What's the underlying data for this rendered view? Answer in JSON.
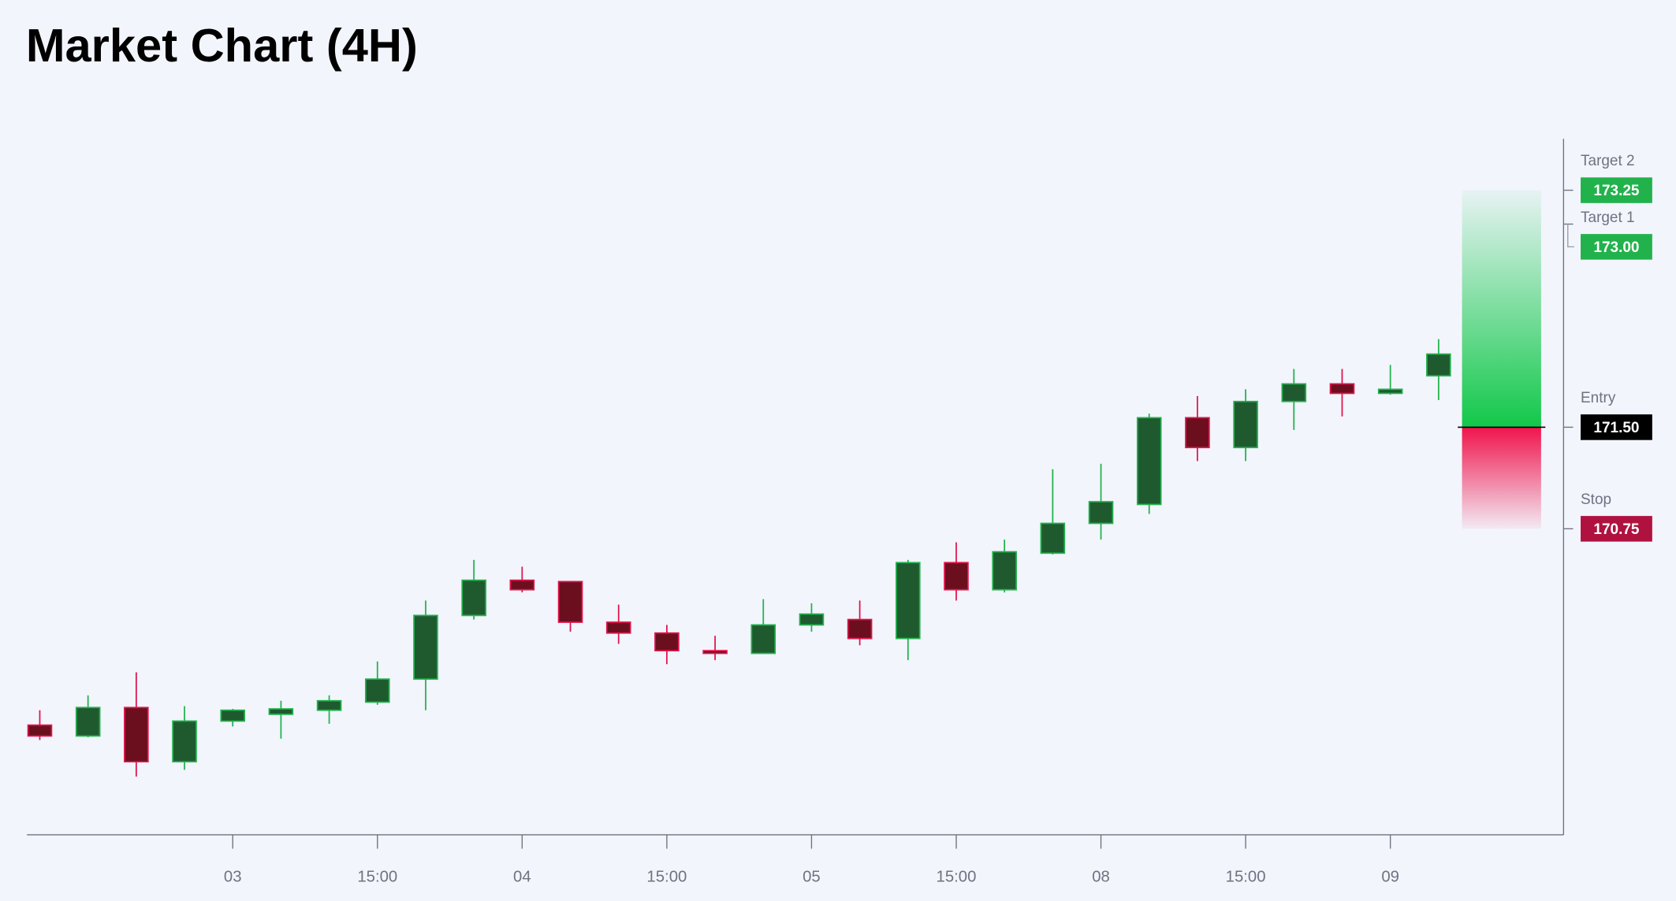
{
  "chart_data": {
    "type": "candlestick",
    "title": "Market Chart (4H)",
    "categories": [
      null,
      null,
      null,
      null,
      "03",
      null,
      null,
      "15:00",
      null,
      null,
      "04",
      null,
      null,
      "15:00",
      null,
      null,
      "05",
      null,
      null,
      "15:00",
      null,
      null,
      "08",
      null,
      null,
      "15:00",
      null,
      null,
      "09",
      null
    ],
    "open": [
      169.3,
      169.22,
      169.43,
      169.03,
      169.33,
      169.38,
      169.41,
      169.47,
      169.64,
      170.11,
      170.37,
      170.36,
      170.06,
      169.98,
      169.85,
      169.83,
      170.04,
      170.08,
      169.94,
      170.5,
      170.3,
      170.57,
      170.79,
      170.93,
      171.57,
      171.35,
      171.69,
      171.82,
      171.75,
      171.88
    ],
    "high": [
      169.41,
      169.52,
      169.69,
      169.44,
      169.42,
      169.48,
      169.52,
      169.77,
      170.22,
      170.52,
      170.47,
      170.36,
      170.19,
      170.04,
      169.96,
      170.23,
      170.2,
      170.22,
      170.52,
      170.65,
      170.67,
      171.19,
      171.23,
      171.6,
      171.73,
      171.78,
      171.93,
      171.93,
      171.96,
      172.15
    ],
    "low": [
      169.19,
      169.21,
      168.92,
      168.97,
      169.29,
      169.2,
      169.31,
      169.45,
      169.41,
      170.08,
      170.28,
      169.99,
      169.9,
      169.75,
      169.78,
      169.83,
      169.99,
      169.89,
      169.78,
      170.22,
      170.28,
      170.56,
      170.67,
      170.86,
      171.25,
      171.25,
      171.48,
      171.58,
      171.74,
      171.7
    ],
    "close": [
      169.22,
      169.43,
      169.03,
      169.33,
      169.41,
      169.42,
      169.48,
      169.64,
      170.11,
      170.37,
      170.3,
      170.06,
      169.98,
      169.85,
      169.83,
      170.04,
      170.12,
      169.94,
      170.5,
      170.3,
      170.58,
      170.79,
      170.95,
      171.57,
      171.35,
      171.69,
      171.82,
      171.75,
      171.78,
      172.04
    ],
    "up_color": "#22b24c",
    "down_color": "#e0144c",
    "ylim": [
      168.49,
      173.63
    ],
    "levels": [
      {
        "name": "Target 2",
        "value": 173.25,
        "value_label": "173.25",
        "color": "#22b24c"
      },
      {
        "name": "Target 1",
        "value": 173.0,
        "value_label": "173.00",
        "color": "#22b24c"
      },
      {
        "name": "Entry",
        "value": 171.5,
        "value_label": "171.50",
        "color": "#000000"
      },
      {
        "name": "Stop",
        "value": 170.75,
        "value_label": "170.75",
        "color": "#b0123f"
      }
    ]
  }
}
